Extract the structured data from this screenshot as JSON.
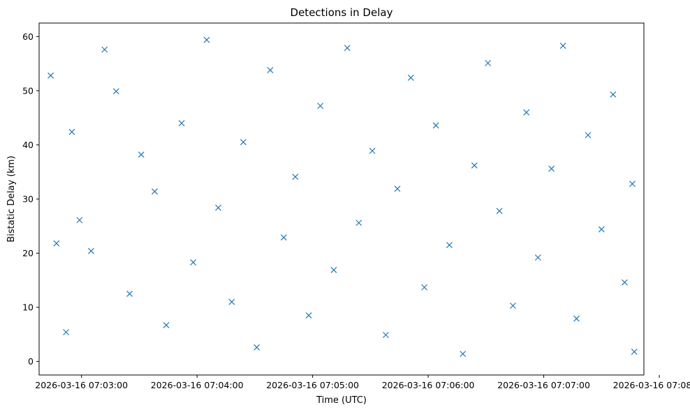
{
  "chart_data": {
    "type": "scatter",
    "title": "Detections in Delay",
    "xlabel": "Time (UTC)",
    "ylabel": "Bistatic Delay (km)",
    "xticks": [
      "2026-03-16 07:03:00",
      "2026-03-16 07:04:00",
      "2026-03-16 07:05:00",
      "2026-03-16 07:06:00",
      "2026-03-16 07:07:00",
      "2026-03-16 07:08:00"
    ],
    "yticks": [
      "0",
      "10",
      "20",
      "30",
      "40",
      "50",
      "60"
    ],
    "xlim": [
      "2026-03-16 07:02:38",
      "2026-03-16 07:07:52"
    ],
    "ylim": [
      -2.5,
      62.5
    ],
    "grid": false,
    "marker": "x",
    "color": "#1f77b4",
    "series": [
      {
        "points": [
          [
            "2026-03-16 07:02:44",
            52.8
          ],
          [
            "2026-03-16 07:02:47",
            21.8
          ],
          [
            "2026-03-16 07:02:52",
            5.4
          ],
          [
            "2026-03-16 07:02:55",
            42.4
          ],
          [
            "2026-03-16 07:02:59",
            26.1
          ],
          [
            "2026-03-16 07:03:05",
            20.4
          ],
          [
            "2026-03-16 07:03:12",
            57.6
          ],
          [
            "2026-03-16 07:03:18",
            49.9
          ],
          [
            "2026-03-16 07:03:25",
            12.5
          ],
          [
            "2026-03-16 07:03:31",
            38.2
          ],
          [
            "2026-03-16 07:03:38",
            31.4
          ],
          [
            "2026-03-16 07:03:44",
            6.7
          ],
          [
            "2026-03-16 07:03:52",
            44.0
          ],
          [
            "2026-03-16 07:03:58",
            18.3
          ],
          [
            "2026-03-16 07:04:05",
            59.4
          ],
          [
            "2026-03-16 07:04:11",
            28.4
          ],
          [
            "2026-03-16 07:04:18",
            11.0
          ],
          [
            "2026-03-16 07:04:24",
            40.5
          ],
          [
            "2026-03-16 07:04:31",
            2.6
          ],
          [
            "2026-03-16 07:04:38",
            53.8
          ],
          [
            "2026-03-16 07:04:45",
            22.9
          ],
          [
            "2026-03-16 07:04:51",
            34.1
          ],
          [
            "2026-03-16 07:04:58",
            8.5
          ],
          [
            "2026-03-16 07:05:04",
            47.2
          ],
          [
            "2026-03-16 07:05:11",
            16.9
          ],
          [
            "2026-03-16 07:05:18",
            57.9
          ],
          [
            "2026-03-16 07:05:24",
            25.6
          ],
          [
            "2026-03-16 07:05:31",
            38.9
          ],
          [
            "2026-03-16 07:05:38",
            4.9
          ],
          [
            "2026-03-16 07:05:44",
            31.9
          ],
          [
            "2026-03-16 07:05:51",
            52.4
          ],
          [
            "2026-03-16 07:05:58",
            13.7
          ],
          [
            "2026-03-16 07:06:04",
            43.6
          ],
          [
            "2026-03-16 07:06:11",
            21.5
          ],
          [
            "2026-03-16 07:06:18",
            1.4
          ],
          [
            "2026-03-16 07:06:24",
            36.2
          ],
          [
            "2026-03-16 07:06:31",
            55.1
          ],
          [
            "2026-03-16 07:06:37",
            27.8
          ],
          [
            "2026-03-16 07:06:44",
            10.3
          ],
          [
            "2026-03-16 07:06:51",
            46.0
          ],
          [
            "2026-03-16 07:06:57",
            19.2
          ],
          [
            "2026-03-16 07:07:04",
            35.6
          ],
          [
            "2026-03-16 07:07:10",
            58.3
          ],
          [
            "2026-03-16 07:07:17",
            7.9
          ],
          [
            "2026-03-16 07:07:23",
            41.8
          ],
          [
            "2026-03-16 07:07:30",
            24.4
          ],
          [
            "2026-03-16 07:07:36",
            49.3
          ],
          [
            "2026-03-16 07:07:42",
            14.6
          ],
          [
            "2026-03-16 07:07:46",
            32.8
          ],
          [
            "2026-03-16 07:07:47",
            1.8
          ]
        ]
      }
    ]
  }
}
